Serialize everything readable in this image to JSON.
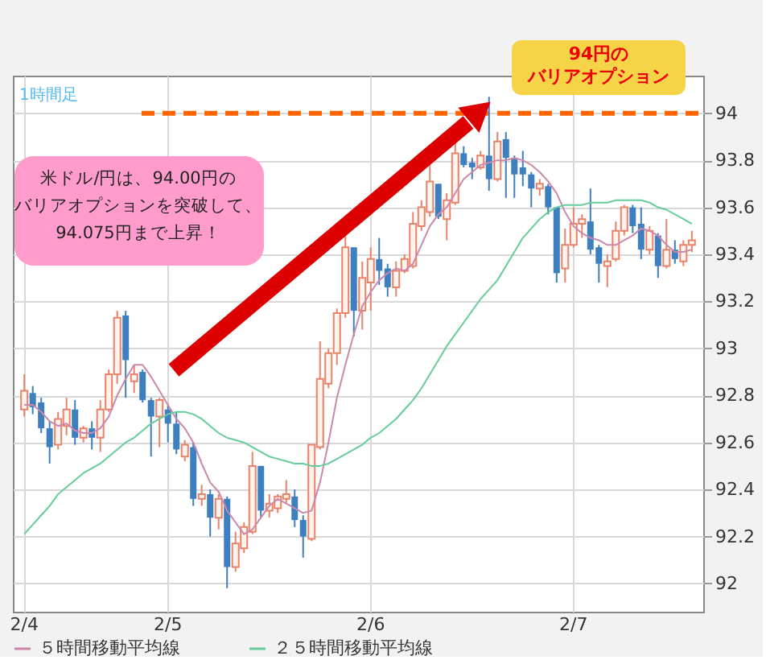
{
  "chart_data": {
    "type": "candlestick",
    "categories": [
      "2/4",
      null,
      null,
      null,
      null,
      null,
      null,
      null,
      null,
      null,
      null,
      null,
      null,
      null,
      null,
      null,
      null,
      "2/5",
      null,
      null,
      null,
      null,
      null,
      null,
      null,
      null,
      null,
      null,
      null,
      null,
      null,
      null,
      null,
      null,
      null,
      null,
      null,
      null,
      null,
      null,
      null,
      "2/6",
      null,
      null,
      null,
      null,
      null,
      null,
      null,
      null,
      null,
      null,
      null,
      null,
      null,
      null,
      null,
      null,
      null,
      null,
      null,
      null,
      null,
      null,
      null,
      "2/7",
      null,
      null,
      null,
      null,
      null,
      null,
      null,
      null,
      null,
      null,
      null,
      null,
      null,
      null
    ],
    "ohlc": [
      [
        92.74,
        92.89,
        92.71,
        92.82
      ],
      [
        92.81,
        92.84,
        92.72,
        92.75
      ],
      [
        92.77,
        92.79,
        92.64,
        92.66
      ],
      [
        92.66,
        92.69,
        92.51,
        92.58
      ],
      [
        92.59,
        92.73,
        92.57,
        92.7
      ],
      [
        92.67,
        92.79,
        92.63,
        92.74
      ],
      [
        92.74,
        92.78,
        92.59,
        92.62
      ],
      [
        92.62,
        92.67,
        92.6,
        92.66
      ],
      [
        92.66,
        92.69,
        92.57,
        92.62
      ],
      [
        92.62,
        92.78,
        92.56,
        92.74
      ],
      [
        92.74,
        92.91,
        92.73,
        92.89
      ],
      [
        92.89,
        93.16,
        92.85,
        93.13
      ],
      [
        93.14,
        93.16,
        92.79,
        92.95
      ],
      [
        92.86,
        92.93,
        92.81,
        92.89
      ],
      [
        92.9,
        92.91,
        92.77,
        92.78
      ],
      [
        92.78,
        92.79,
        92.54,
        92.71
      ],
      [
        92.71,
        92.79,
        92.58,
        92.78
      ],
      [
        92.74,
        92.76,
        92.6,
        92.68
      ],
      [
        92.68,
        92.73,
        92.55,
        92.57
      ],
      [
        92.54,
        92.61,
        92.52,
        92.59
      ],
      [
        92.58,
        92.6,
        92.33,
        92.36
      ],
      [
        92.36,
        92.42,
        92.33,
        92.38
      ],
      [
        92.38,
        92.4,
        92.2,
        92.28
      ],
      [
        92.28,
        92.38,
        92.23,
        92.36
      ],
      [
        92.36,
        92.37,
        91.98,
        92.07
      ],
      [
        92.07,
        92.22,
        92.05,
        92.17
      ],
      [
        92.15,
        92.26,
        92.13,
        92.24
      ],
      [
        92.22,
        92.56,
        92.21,
        92.5
      ],
      [
        92.5,
        92.5,
        92.28,
        92.31
      ],
      [
        92.31,
        92.38,
        92.28,
        92.34
      ],
      [
        92.32,
        92.38,
        92.3,
        92.37
      ],
      [
        92.36,
        92.44,
        92.34,
        92.38
      ],
      [
        92.37,
        92.4,
        92.24,
        92.27
      ],
      [
        92.27,
        92.29,
        92.11,
        92.2
      ],
      [
        92.19,
        92.59,
        92.18,
        92.59
      ],
      [
        92.58,
        93.03,
        92.57,
        92.87
      ],
      [
        92.85,
        93.0,
        92.83,
        92.98
      ],
      [
        92.98,
        93.17,
        92.93,
        93.15
      ],
      [
        93.15,
        93.48,
        93.13,
        93.43
      ],
      [
        93.43,
        93.43,
        93.05,
        93.16
      ],
      [
        93.16,
        93.37,
        93.08,
        93.3
      ],
      [
        93.28,
        93.43,
        93.16,
        93.38
      ],
      [
        93.38,
        93.47,
        93.27,
        93.33
      ],
      [
        93.34,
        93.36,
        93.22,
        93.26
      ],
      [
        93.26,
        93.37,
        93.22,
        93.33
      ],
      [
        93.33,
        93.4,
        93.32,
        93.38
      ],
      [
        93.35,
        93.58,
        93.34,
        93.53
      ],
      [
        93.52,
        93.63,
        93.5,
        93.6
      ],
      [
        93.58,
        93.78,
        93.56,
        93.71
      ],
      [
        93.7,
        93.7,
        93.55,
        93.56
      ],
      [
        93.55,
        93.66,
        93.46,
        93.63
      ],
      [
        93.62,
        93.88,
        93.61,
        93.83
      ],
      [
        93.83,
        93.86,
        93.77,
        93.78
      ],
      [
        93.79,
        93.81,
        93.72,
        93.77
      ],
      [
        93.77,
        93.84,
        93.76,
        93.82
      ],
      [
        93.82,
        94.07,
        93.67,
        93.72
      ],
      [
        93.72,
        93.92,
        93.71,
        93.88
      ],
      [
        93.89,
        93.92,
        93.64,
        93.81
      ],
      [
        93.81,
        93.82,
        93.64,
        93.74
      ],
      [
        93.77,
        93.84,
        93.69,
        93.74
      ],
      [
        93.74,
        93.75,
        93.6,
        93.68
      ],
      [
        93.68,
        93.72,
        93.65,
        93.7
      ],
      [
        93.69,
        93.7,
        93.57,
        93.6
      ],
      [
        93.6,
        93.6,
        93.28,
        93.32
      ],
      [
        93.34,
        93.51,
        93.28,
        93.44
      ],
      [
        93.44,
        93.6,
        93.43,
        93.53
      ],
      [
        93.53,
        93.57,
        93.47,
        93.55
      ],
      [
        93.54,
        93.68,
        93.4,
        93.42
      ],
      [
        93.43,
        93.44,
        93.28,
        93.36
      ],
      [
        93.35,
        93.4,
        93.26,
        93.37
      ],
      [
        93.38,
        93.54,
        93.37,
        93.5
      ],
      [
        93.5,
        93.61,
        93.48,
        93.6
      ],
      [
        93.6,
        93.61,
        93.49,
        93.52
      ],
      [
        93.53,
        93.6,
        93.38,
        93.42
      ],
      [
        93.42,
        93.52,
        93.4,
        93.5
      ],
      [
        93.48,
        93.49,
        93.3,
        93.35
      ],
      [
        93.35,
        93.55,
        93.34,
        93.42
      ],
      [
        93.42,
        93.46,
        93.36,
        93.38
      ],
      [
        93.37,
        93.46,
        93.35,
        93.44
      ],
      [
        93.44,
        93.5,
        93.41,
        93.46
      ]
    ],
    "series": [
      {
        "name": "５時間移動平均線",
        "type": "line",
        "color": "#cc88aa",
        "values": [
          92.76,
          92.76,
          92.73,
          92.69,
          92.67,
          92.68,
          92.65,
          92.64,
          92.64,
          92.66,
          92.71,
          92.8,
          92.87,
          92.93,
          92.93,
          92.88,
          92.82,
          92.76,
          92.7,
          92.66,
          92.6,
          92.51,
          92.43,
          92.39,
          92.31,
          92.26,
          92.21,
          92.23,
          92.28,
          92.33,
          92.36,
          92.34,
          92.32,
          92.3,
          92.31,
          92.43,
          92.6,
          92.79,
          92.93,
          93.06,
          93.18,
          93.24,
          93.29,
          93.32,
          93.34,
          93.33,
          93.36,
          93.44,
          93.52,
          93.57,
          93.6,
          93.66,
          93.72,
          93.75,
          93.78,
          93.79,
          93.8,
          93.8,
          93.81,
          93.8,
          93.78,
          93.75,
          93.71,
          93.66,
          93.58,
          93.52,
          93.49,
          93.47,
          93.46,
          93.44,
          93.44,
          93.46,
          93.48,
          93.51,
          93.5,
          93.48,
          93.44,
          93.41,
          93.41,
          93.42
        ]
      },
      {
        "name": "２５時間移動平均線",
        "type": "line",
        "color": "#66cc99",
        "values": [
          92.21,
          92.25,
          92.29,
          92.33,
          92.38,
          92.41,
          92.44,
          92.47,
          92.49,
          92.51,
          92.54,
          92.57,
          92.6,
          92.62,
          92.65,
          92.68,
          92.7,
          92.72,
          92.73,
          92.73,
          92.72,
          92.7,
          92.67,
          92.64,
          92.62,
          92.61,
          92.6,
          92.58,
          92.56,
          92.54,
          92.53,
          92.52,
          92.51,
          92.51,
          92.5,
          92.5,
          92.51,
          92.53,
          92.55,
          92.57,
          92.59,
          92.62,
          92.64,
          92.67,
          92.7,
          92.74,
          92.78,
          92.83,
          92.89,
          92.95,
          93.01,
          93.06,
          93.11,
          93.16,
          93.21,
          93.25,
          93.29,
          93.35,
          93.41,
          93.47,
          93.51,
          93.55,
          93.58,
          93.6,
          93.61,
          93.61,
          93.61,
          93.62,
          93.62,
          93.62,
          93.63,
          93.63,
          93.63,
          93.63,
          93.62,
          93.6,
          93.59,
          93.57,
          93.55,
          93.53
        ]
      }
    ],
    "ylim": [
      91.88,
      94.16
    ],
    "yticks": [
      92,
      92.2,
      92.4,
      92.6,
      92.8,
      93,
      93.2,
      93.4,
      93.6,
      93.8,
      94
    ],
    "grid": true,
    "legend": "bottom",
    "ref_lines": [
      {
        "axis": "y",
        "value": 94,
        "label": "94円のバリアオプション",
        "color": "#ff6600",
        "line_style": "dashed"
      }
    ],
    "annotations": [
      "1時間足",
      "米ドル/円は、94.00円のバリアオプションを突破して、94.075円まで上昇！"
    ]
  }
}
